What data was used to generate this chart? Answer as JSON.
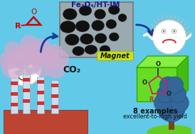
{
  "bg_color": "#62cae8",
  "title_text": "Fe₃O₄/HT-IM",
  "title_color": "#1a1a8c",
  "co2_text": "CO₂",
  "co2_color": "#111111",
  "examples_text": "8 examples",
  "yield_text": "excellent-to-high yield",
  "text_color": "#111111",
  "magnet_text": "Magnet",
  "magnet_bg": "#c8e020",
  "arrow_color": "#1a3a9c",
  "epoxide_color": "#cc0000",
  "carbonate_pink": "#cc2266",
  "smoke_color": "#ccaace",
  "tree_green": "#1a6614",
  "tree_blue": "#336699",
  "hill_green": "#66cc22",
  "factory_red": "#cc3333",
  "np_gray": "#9aaab0",
  "np_dark": "#111111"
}
